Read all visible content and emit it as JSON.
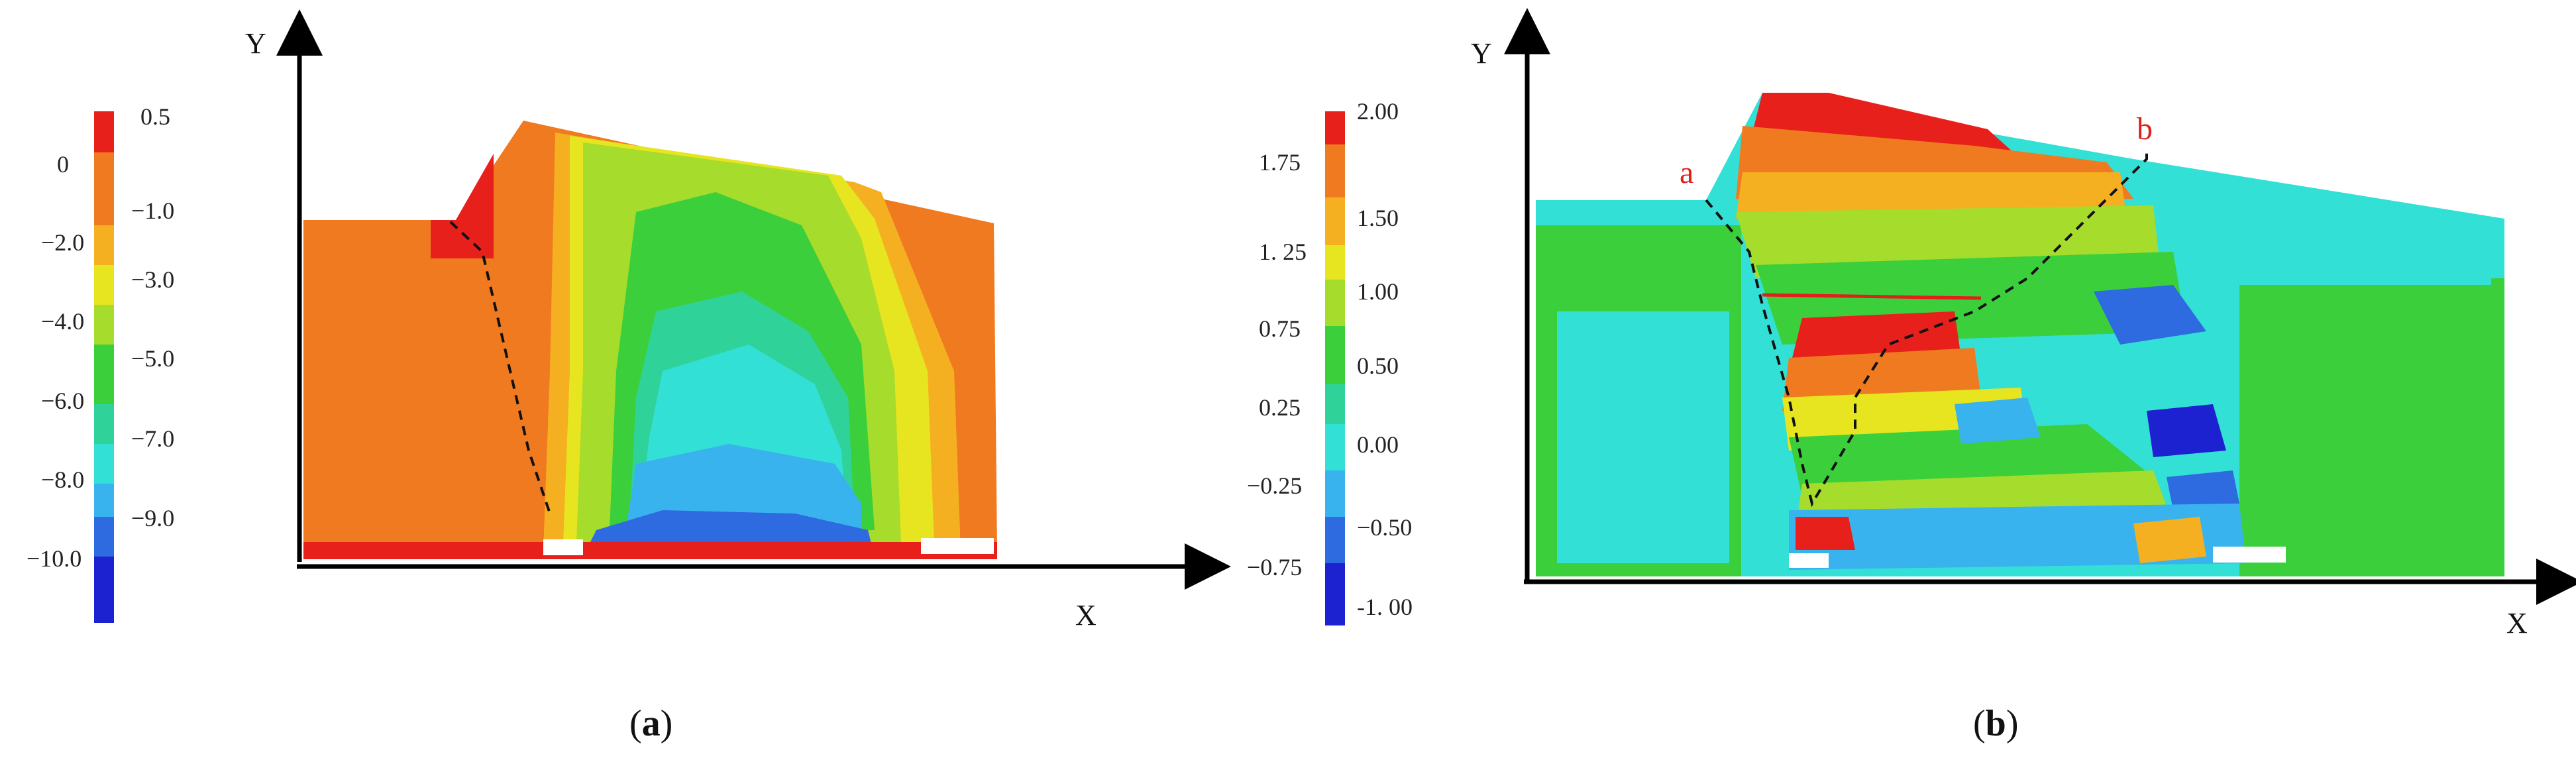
{
  "panel_a": {
    "caption_open": "(",
    "caption_letter": "a",
    "caption_close": ")",
    "x_axis_label": "X",
    "y_axis_label": "Y",
    "colorbar_ticks": [
      "0.5",
      "0",
      "−1.0",
      "−2.0",
      "−3.0",
      "−4.0",
      "−5.0",
      "−6.0",
      "−7.0",
      "−8.0",
      "−9.0",
      "−10.0"
    ]
  },
  "panel_b": {
    "caption_open": "(",
    "caption_letter": "b",
    "caption_close": ")",
    "x_axis_label": "X",
    "y_axis_label": "Y",
    "point_a_label": "a",
    "point_b_label": "b",
    "colorbar_ticks": [
      "2.00",
      "1.75",
      "1.50",
      "1. 25",
      "1.00",
      "0.75",
      "0.50",
      "0.25",
      "0.00",
      "−0.25",
      "−0.50",
      "−0.75",
      "-1. 00"
    ]
  },
  "colors": {
    "red": "#e8201c",
    "orange": "#f07a20",
    "yellow_orange": "#f5b021",
    "yellow": "#e6e520",
    "yellow_green": "#a6dc2c",
    "green": "#3bcf3b",
    "teal": "#2fd39a",
    "cyan": "#33e0d6",
    "light_blue": "#39b3ee",
    "blue": "#2f6be0",
    "dark_blue": "#1c22cf",
    "slip_line": "#111111",
    "crack_line": "#e0201a"
  }
}
